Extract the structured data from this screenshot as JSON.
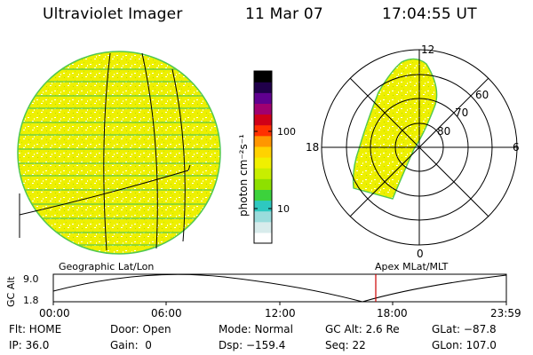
{
  "header": {
    "instrument": "Ultraviolet Imager",
    "date": "11 Mar 07",
    "time": "17:04:55 UT"
  },
  "colorbar": {
    "label": "photon cm⁻²s⁻¹",
    "ticks": [
      "100",
      "10"
    ],
    "colors": [
      "#ffffff",
      "#d8ecec",
      "#9adcdc",
      "#2ec8c0",
      "#3cd23c",
      "#8ee000",
      "#c8ee00",
      "#f0f000",
      "#ffd200",
      "#ff9600",
      "#ff3000",
      "#d00018",
      "#a00070",
      "#600090",
      "#20004a",
      "#000000"
    ]
  },
  "polar": {
    "mlt_labels": [
      "12",
      "18",
      "6",
      "0"
    ],
    "lat_labels": [
      "60",
      "70",
      "80"
    ]
  },
  "timeline": {
    "axis_label": "GC Alt",
    "y_labels": [
      "9.0",
      "1.8"
    ],
    "left_label": "Geographic Lat/Lon",
    "right_label": "Apex MLat/MLT",
    "x_ticks": [
      "00:00",
      "06:00",
      "12:00",
      "18:00",
      "23:59"
    ],
    "marker_color": "#cc0000"
  },
  "status": {
    "filter": "Flt: HOME",
    "ip": "IP: 36.0",
    "door": "Door: Open",
    "gain": "Gain:  0",
    "mode": "Mode: Normal",
    "dsp": "Dsp: −159.4",
    "gcalt": "GC Alt: 2.6 Re",
    "seq": "Seq: 22",
    "glat": "GLat: −87.8",
    "glon": "GLon: 107.0"
  }
}
